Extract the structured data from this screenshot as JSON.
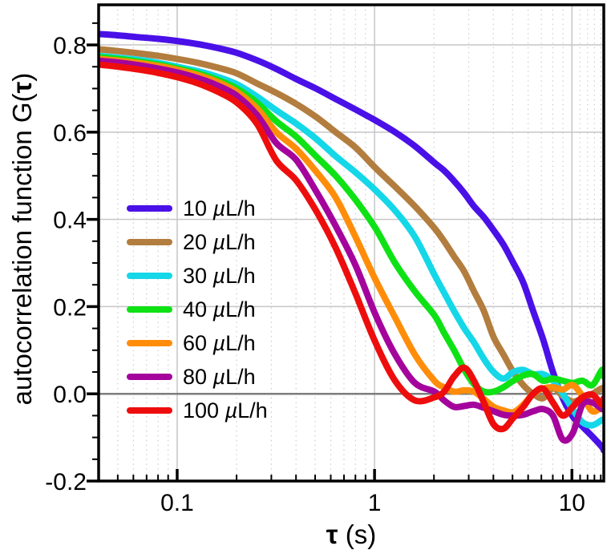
{
  "figure": {
    "background": "#ffffff",
    "frame_color": "#000000",
    "grid_color": "#c6c6c6",
    "zero_line_color": "#7d7d7d"
  },
  "axes": {
    "x": {
      "label_tau": "τ",
      "label_unit": " (s)",
      "scale": "log",
      "min": 0.04,
      "max": 14.5,
      "tick_values": [
        0.1,
        1,
        10
      ],
      "tick_labels": [
        "0.1",
        "1",
        "10"
      ],
      "minor_tick_values": [
        0.05,
        0.06,
        0.07,
        0.08,
        0.09,
        0.2,
        0.3,
        0.4,
        0.5,
        0.6,
        0.7,
        0.8,
        0.9,
        2,
        3,
        4,
        5,
        6,
        7,
        8,
        9,
        11,
        12,
        13,
        14
      ]
    },
    "y": {
      "label_prefix": "autocorrelation function G(",
      "label_tau": "τ",
      "label_suffix": ")",
      "min": -0.2,
      "max": 0.892,
      "tick_values": [
        -0.2,
        0.0,
        0.2,
        0.4,
        0.6,
        0.8
      ],
      "tick_labels": [
        "-0.2",
        "0.0",
        "0.2",
        "0.4",
        "0.6",
        "0.8"
      ],
      "minor_tick_values": [
        -0.15,
        -0.1,
        -0.05,
        0.05,
        0.1,
        0.15,
        0.25,
        0.3,
        0.35,
        0.45,
        0.5,
        0.55,
        0.65,
        0.7,
        0.75,
        0.85
      ]
    }
  },
  "chart_data": {
    "type": "line",
    "title": "",
    "xlabel": "τ (s)",
    "ylabel": "autocorrelation function G(τ)",
    "xscale": "log",
    "xlim": [
      0.04,
      14.5
    ],
    "ylim": [
      -0.2,
      0.892
    ],
    "grid": true,
    "zero_line": true,
    "legend_position": "inside-left",
    "tau": [
      0.04,
      0.05,
      0.063,
      0.08,
      0.1,
      0.127,
      0.16,
      0.2,
      0.253,
      0.318,
      0.4,
      0.505,
      0.635,
      0.8,
      1.01,
      1.27,
      1.6,
      2.01,
      2.25,
      2.53,
      2.85,
      3.19,
      3.58,
      4.01,
      4.5,
      5.05,
      5.67,
      6.36,
      7.14,
      8.01,
      8.99,
      10.1,
      11.3,
      12.7,
      14.2,
      14.5
    ],
    "series": [
      {
        "name": "10 µL/h",
        "color": "#4a10e8",
        "values": [
          0.825,
          0.822,
          0.818,
          0.814,
          0.809,
          0.802,
          0.793,
          0.782,
          0.765,
          0.745,
          0.722,
          0.7,
          0.676,
          0.652,
          0.627,
          0.6,
          0.568,
          0.53,
          0.512,
          0.488,
          0.46,
          0.43,
          0.405,
          0.375,
          0.342,
          0.3,
          0.255,
          0.19,
          0.125,
          0.05,
          -0.01,
          -0.052,
          -0.075,
          -0.098,
          -0.122,
          -0.13
        ]
      },
      {
        "name": "20 µL/h",
        "color": "#b27d3e",
        "values": [
          0.79,
          0.786,
          0.781,
          0.775,
          0.768,
          0.759,
          0.748,
          0.735,
          0.712,
          0.69,
          0.665,
          0.635,
          0.6,
          0.565,
          0.518,
          0.475,
          0.43,
          0.38,
          0.35,
          0.315,
          0.28,
          0.235,
          0.19,
          0.13,
          0.09,
          0.05,
          0.02,
          0.0,
          -0.01,
          0.013,
          -0.005,
          -0.018,
          -0.01,
          0.0,
          0.013,
          0.008
        ]
      },
      {
        "name": "30 µL/h",
        "color": "#14d7e8",
        "values": [
          0.775,
          0.771,
          0.766,
          0.759,
          0.75,
          0.74,
          0.727,
          0.71,
          0.682,
          0.65,
          0.62,
          0.585,
          0.545,
          0.508,
          0.467,
          0.42,
          0.36,
          0.273,
          0.232,
          0.19,
          0.15,
          0.118,
          0.08,
          0.05,
          0.035,
          0.05,
          0.055,
          0.045,
          0.045,
          0.03,
          0.0,
          -0.036,
          -0.065,
          -0.072,
          -0.06,
          -0.062
        ]
      },
      {
        "name": "40 µL/h",
        "color": "#0ee215",
        "values": [
          0.772,
          0.768,
          0.762,
          0.755,
          0.746,
          0.735,
          0.72,
          0.7,
          0.668,
          0.625,
          0.59,
          0.545,
          0.5,
          0.445,
          0.38,
          0.3,
          0.235,
          0.18,
          0.14,
          0.1,
          0.055,
          0.022,
          0.005,
          0.005,
          0.015,
          0.03,
          0.042,
          0.045,
          0.03,
          0.035,
          0.03,
          0.025,
          0.03,
          0.02,
          0.055,
          0.04
        ]
      },
      {
        "name": "60 µL/h",
        "color": "#ff8d0a",
        "values": [
          0.768,
          0.764,
          0.759,
          0.752,
          0.743,
          0.731,
          0.715,
          0.693,
          0.655,
          0.6,
          0.562,
          0.51,
          0.45,
          0.36,
          0.262,
          0.175,
          0.09,
          0.03,
          0.015,
          0.005,
          0.008,
          0.005,
          -0.012,
          -0.03,
          -0.038,
          -0.042,
          -0.025,
          0.0,
          0.012,
          0.015,
          0.01,
          0.02,
          -0.005,
          -0.04,
          -0.03,
          -0.036
        ]
      },
      {
        "name": "80 µL/h",
        "color": "#a4049c",
        "values": [
          0.764,
          0.76,
          0.754,
          0.746,
          0.737,
          0.724,
          0.707,
          0.684,
          0.64,
          0.575,
          0.537,
          0.465,
          0.385,
          0.295,
          0.182,
          0.09,
          0.025,
          0.005,
          -0.015,
          -0.03,
          -0.028,
          -0.025,
          -0.032,
          -0.04,
          -0.048,
          -0.05,
          -0.048,
          -0.04,
          -0.035,
          -0.05,
          -0.105,
          -0.09,
          -0.025,
          -0.02,
          -0.035,
          -0.03
        ]
      },
      {
        "name": "100 µL/h",
        "color": "#ee0d0d",
        "values": [
          0.755,
          0.75,
          0.744,
          0.736,
          0.726,
          0.712,
          0.693,
          0.668,
          0.62,
          0.535,
          0.49,
          0.42,
          0.335,
          0.23,
          0.118,
          0.03,
          -0.015,
          -0.008,
          0.005,
          0.04,
          0.06,
          0.03,
          -0.02,
          -0.07,
          -0.08,
          -0.055,
          -0.03,
          0.0,
          0.012,
          -0.02,
          -0.05,
          -0.03,
          -0.008,
          -0.002,
          -0.025,
          -0.01
        ]
      }
    ]
  }
}
